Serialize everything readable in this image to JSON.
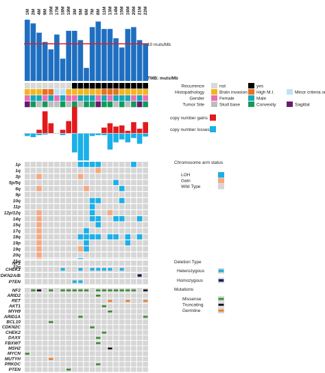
{
  "colors": {
    "tmb_bar": "#1f6fc1",
    "threshold": "#e31a1c",
    "gain_bar": "#e31a1c",
    "loss_bar": "#1ab0e8",
    "cell_bg": "#d6d6d6",
    "loh": "#1ab0e8",
    "gain": "#f5a982",
    "heterozygous": "#1ab0e8",
    "homozygous": "#1a1a60",
    "missense": "#3a8a2e",
    "truncating": "#111111",
    "germline": "#f07a1a",
    "rec_not": "#d9d9d9",
    "rec_yes": "#000000",
    "hist_brain": "#f5b51e",
    "hist_highmi": "#e8711c",
    "hist_minor": "#bfe2f5",
    "gender_female": "#e86fb9",
    "gender_male": "#18a8bd",
    "site_skull": "#bdbdbd",
    "site_convexity": "#129a5c",
    "site_sagittal": "#6a1a6f"
  },
  "chart_data": {
    "type": "heatmap",
    "samples": [
      "1M",
      "2M",
      "4M",
      "9M",
      "10M",
      "17M",
      "18M",
      "19M",
      "3M",
      "5M",
      "6M",
      "7M",
      "8M",
      "11M",
      "13M",
      "14M",
      "15M",
      "16M",
      "20M",
      "21M",
      "22M"
    ],
    "tmb": {
      "label": "TMB: muts/Mb",
      "threshold": 10,
      "threshold_label": "10 muts/Mb",
      "ylim": [
        0,
        17
      ],
      "values": [
        16.5,
        15.5,
        13.0,
        10.5,
        8.5,
        12.5,
        6.0,
        13.5,
        13.5,
        11.0,
        3.5,
        14.5,
        16.0,
        14.0,
        14.0,
        11.5,
        9.0,
        14.0,
        14.5,
        11.0,
        10.0
      ]
    },
    "clinical": {
      "tracks": [
        {
          "name": "Recurrence",
          "values": [
            "not",
            "not",
            "not",
            "not",
            "not",
            "not",
            "not",
            "not",
            "yes",
            "yes",
            "yes",
            "yes",
            "yes",
            "yes",
            "yes",
            "yes",
            "yes",
            "yes",
            "yes",
            "yes",
            "yes"
          ]
        },
        {
          "name": "Histopathology",
          "values": [
            "brain",
            "brain",
            "brain",
            "highmi",
            "highmi",
            "minor",
            "minor",
            "brain",
            "brain",
            "brain",
            "brain",
            "brain",
            "brain",
            "highmi",
            "highmi",
            "highmi",
            "brain",
            "brain",
            "brain",
            "brain",
            "brain"
          ]
        },
        {
          "name": "Gender",
          "values": [
            "female",
            "male",
            "male",
            "female",
            "male",
            "female",
            "male",
            "female",
            "female",
            "male",
            "male",
            "male",
            "female",
            "male",
            "female",
            "male",
            "male",
            "male",
            "female",
            "male",
            "female"
          ]
        },
        {
          "name": "Tumor Site",
          "values": [
            "sagittal",
            "convexity",
            "skull",
            "convexity",
            "skull",
            "skull",
            "convexity",
            "skull",
            "convexity",
            "skull",
            "convexity",
            "convexity",
            "sagittal",
            "convexity",
            "convexity",
            "skull",
            "convexity",
            "skull",
            "convexity",
            "sagittal",
            "convexity"
          ]
        }
      ],
      "legend": [
        {
          "label": "not",
          "color": "rec_not"
        },
        {
          "label": "yes",
          "color": "rec_yes"
        },
        {
          "label": "Brain invasion",
          "color": "hist_brain"
        },
        {
          "label": "High M.I.",
          "color": "hist_highmi"
        },
        {
          "label": "Minor criteria only",
          "color": "hist_minor"
        },
        {
          "label": "Female",
          "color": "gender_female"
        },
        {
          "label": "Male",
          "color": "gender_male"
        },
        {
          "label": "Skull base",
          "color": "site_skull"
        },
        {
          "label": "Convexity",
          "color": "site_convexity"
        },
        {
          "label": "Sagittal",
          "color": "site_sagittal"
        }
      ]
    },
    "copy_number": {
      "gains": [
        0,
        0,
        0.15,
        1.0,
        0.45,
        0,
        0.15,
        0.55,
        1.2,
        0,
        0,
        0,
        0,
        0.25,
        0.45,
        0.3,
        0.35,
        0.1,
        0.5,
        0.2,
        0.5
      ],
      "losses": [
        0.08,
        0.12,
        0.05,
        0.03,
        0,
        0,
        0.05,
        0,
        0.65,
        0.95,
        0.95,
        0.08,
        0.05,
        0.05,
        0.55,
        0.3,
        0.2,
        0.3,
        0.15,
        0.35,
        0.1
      ],
      "legend_gain": "copy number gains",
      "legend_loss": "copy number losses"
    },
    "chromosome_arms": {
      "title": "Chromosome arm status",
      "rows": [
        "1p",
        "1q",
        "3p",
        "5p/5q",
        "6q",
        "9p",
        "10q",
        "11p",
        "12p/12q",
        "14q",
        "15q",
        "17q",
        "18q",
        "19p",
        "19q",
        "20q",
        "21q",
        "22q"
      ],
      "cells": [
        "---------LLLL-----L--",
        "------------G--------",
        "--G------G-----------",
        "---------------L-----",
        "--G-------G-----L----",
        "---------------------",
        "-----------LL---L----",
        "-----------L---------",
        "--G--------L--G------",
        "--G--------LL--LL--L-",
        "--G---------L--------",
        "--G-------L----------",
        "--G------LLLL-LL-L-L-",
        "--G-------L------L---",
        "--G------GL----------",
        "--G------------------",
        "--G------L-----------",
        "--G-------L-------L--"
      ],
      "legend": [
        {
          "label": "LOH",
          "color": "loh"
        },
        {
          "label": "Gain",
          "color": "gain"
        },
        {
          "label": "Wild Type",
          "color": "cell_bg"
        }
      ]
    },
    "deletions": {
      "title": "Deletion Type",
      "rows": [
        "NF2",
        "CHEK2",
        "CDKN2A/B",
        "PTEN"
      ],
      "cells": [
        "---------------------",
        "------H--H-HHHH-H----",
        "-------------------O-",
        "--------HH-----------"
      ],
      "legend": [
        {
          "label": "Heterozygous",
          "color": "heterozygous"
        },
        {
          "label": "Homozygous",
          "color": "homozygous"
        }
      ]
    },
    "mutations": {
      "title": "Mutations",
      "rows": [
        "NF2",
        "ARID2",
        "RET",
        "AKT1",
        "MYH9",
        "ARID1A",
        "BCL10",
        "CDKN2C",
        "CHEK2",
        "DAXX",
        "FBXW7",
        "MSH2",
        "MYCN",
        "MUTYH",
        "PRKDC",
        "PTEN"
      ],
      "cells": [
        "-MT-M-MMMMM-MMMMMMM-T",
        "------------M--------",
        "--------------G--G--G",
        "-------------M-------",
        "--------------M------",
        "---------M----------M",
        "----M----------------",
        "-----------M---------",
        "-------------M-------",
        "------------M--------",
        "------------M--------",
        "--------------T------",
        "M--------------------",
        "----G----------------",
        "------------M--------",
        "-------M-------------"
      ],
      "legend": [
        {
          "label": "Missense",
          "color": "missense"
        },
        {
          "label": "Truncating",
          "color": "truncating"
        },
        {
          "label": "Germline",
          "color": "germline"
        }
      ]
    }
  }
}
